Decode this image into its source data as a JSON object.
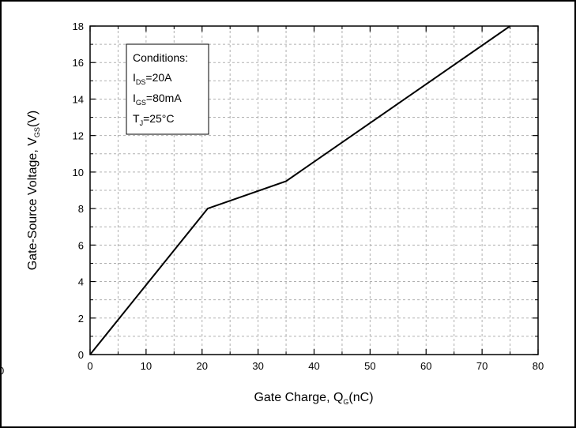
{
  "chart_data": {
    "type": "line",
    "xlabel": {
      "main": "Gate Charge, Q",
      "sub": "G",
      "tail": "(nC)"
    },
    "ylabel": {
      "main": "Gate-Source Voltage, V",
      "sub": "GS",
      "tail": "(V)"
    },
    "xlim": [
      0,
      80
    ],
    "ylim": [
      0,
      18
    ],
    "xticks": [
      "0",
      "10",
      "20",
      "30",
      "40",
      "50",
      "60",
      "70",
      "80"
    ],
    "yticks": [
      "0",
      "2",
      "4",
      "6",
      "8",
      "10",
      "12",
      "14",
      "16",
      "18"
    ],
    "grid": true,
    "series": [
      {
        "x": [
          0,
          21,
          35,
          75
        ],
        "y": [
          0,
          8,
          9.5,
          18
        ]
      }
    ],
    "conditions": {
      "title": "Conditions:",
      "lines": [
        {
          "main": "I",
          "sub": "DS",
          "tail": "=20A"
        },
        {
          "main": "I",
          "sub": "GS",
          "tail": "=80mA"
        },
        {
          "main": "T",
          "sub": "J",
          "tail": "=25°C"
        }
      ]
    },
    "stray_label": "0"
  }
}
